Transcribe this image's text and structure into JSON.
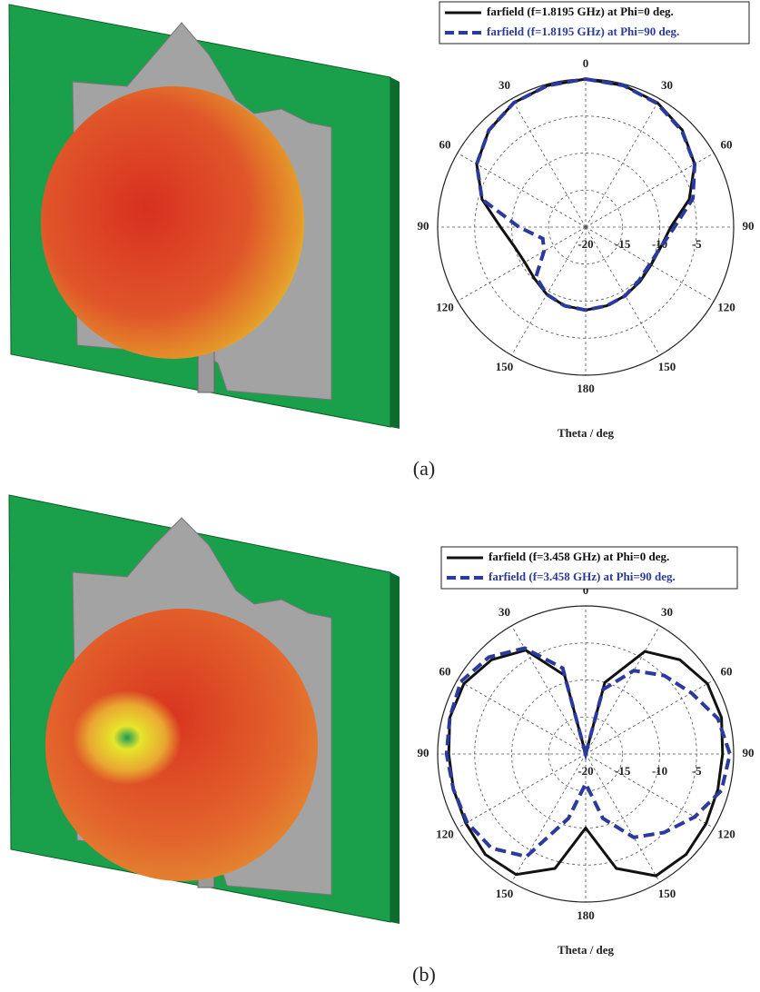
{
  "chart_data": [
    {
      "type": "polar",
      "caption": "(a)",
      "xlabel": "Theta / deg",
      "x": [
        0,
        15,
        30,
        45,
        60,
        75,
        90,
        105,
        120,
        135,
        150,
        165,
        180,
        195,
        210,
        225,
        240,
        255,
        270,
        285,
        300,
        315,
        330,
        345
      ],
      "series": [
        {
          "name": "farfield (f=1.8195 GHz) at Phi=0 deg.",
          "color": "#111111",
          "dash": false,
          "values": [
            0,
            -0.2,
            -0.6,
            -1.5,
            -3,
            -5.5,
            -8.5,
            -9.5,
            -9.8,
            -9.6,
            -9.3,
            -9,
            -8.8,
            -9,
            -9.5,
            -10.2,
            -10.5,
            -10,
            -8.5,
            -5.5,
            -3,
            -1.5,
            -0.6,
            -0.2
          ]
        },
        {
          "name": "farfield (f=1.8195 GHz)  at Phi=90 deg.",
          "color": "#2b3a9e",
          "dash": true,
          "values": [
            0,
            -0.2,
            -0.7,
            -1.6,
            -3,
            -5,
            -8,
            -9.5,
            -10,
            -9.8,
            -9.3,
            -9,
            -8.8,
            -9,
            -9.5,
            -10.5,
            -13.5,
            -14,
            -11,
            -5.5,
            -3,
            -1.5,
            -0.6,
            -0.2
          ]
        }
      ],
      "ylim": [
        -20,
        0
      ],
      "yticks": [
        -20,
        -15,
        -10,
        -5
      ],
      "xticks": [
        0,
        30,
        60,
        90,
        120,
        150,
        180,
        {
          "value": 210,
          "label": "150"
        },
        {
          "value": 240,
          "label": "120"
        },
        {
          "value": 270,
          "label": "90"
        },
        {
          "value": 300,
          "label": "60"
        },
        {
          "value": 330,
          "label": "30"
        }
      ],
      "grid": true
    },
    {
      "type": "polar",
      "caption": "(b)",
      "xlabel": "Theta / deg",
      "x": [
        0,
        15,
        30,
        45,
        60,
        75,
        90,
        105,
        120,
        135,
        150,
        165,
        180,
        195,
        210,
        225,
        240,
        255,
        270,
        285,
        300,
        315,
        330,
        345
      ],
      "series": [
        {
          "name": "farfield (f=3.458 GHz) at Phi=0 deg.",
          "color": "#111111",
          "dash": false,
          "values": [
            -20,
            -10,
            -4,
            -2,
            -1,
            -1,
            -1.5,
            -1.5,
            -1.2,
            -0.8,
            -1,
            -4,
            -10,
            -4,
            -1.2,
            -0.8,
            -1.3,
            -1.5,
            -1.5,
            -1,
            -1,
            -2,
            -3.8,
            -9
          ]
        },
        {
          "name": "farfield (f=3.458 GHz)  at Phi=90 deg.",
          "color": "#2b3a9e",
          "dash": true,
          "values": [
            -20,
            -11,
            -7,
            -5,
            -3.5,
            -1.5,
            -0.5,
            -1,
            -3,
            -5,
            -7,
            -11,
            -16,
            -11,
            -4,
            -2,
            -1.5,
            -1.5,
            -1.2,
            -1,
            -0.5,
            -1.5,
            -3.5,
            -8
          ]
        }
      ],
      "ylim": [
        -20,
        0
      ],
      "yticks": [
        -20,
        -15,
        -10,
        -5
      ],
      "xticks": [
        0,
        30,
        60,
        90,
        120,
        150,
        180,
        {
          "value": 210,
          "label": "150"
        },
        {
          "value": 240,
          "label": "120"
        },
        {
          "value": 270,
          "label": "90"
        },
        {
          "value": 300,
          "label": "60"
        },
        {
          "value": 330,
          "label": "30"
        }
      ],
      "grid": true
    }
  ]
}
